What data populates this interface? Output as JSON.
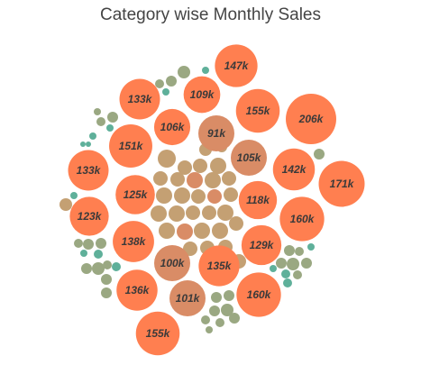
{
  "chart_data": {
    "type": "packed-bubble",
    "title": "Category wise Monthly Sales",
    "legend": "none",
    "grid": false,
    "colors": {
      "large": "#ff7f50",
      "medium": "#d98c66",
      "small": "#c4a073",
      "olive": "#9aa882",
      "teal": "#5fb09a"
    },
    "labeled_bubbles": [
      {
        "label": "147k",
        "value": 147,
        "tone": "large"
      },
      {
        "label": "109k",
        "value": 109,
        "tone": "large"
      },
      {
        "label": "133k",
        "value": 133,
        "tone": "large"
      },
      {
        "label": "155k",
        "value": 155,
        "tone": "large"
      },
      {
        "label": "206k",
        "value": 206,
        "tone": "large"
      },
      {
        "label": "106k",
        "value": 106,
        "tone": "large"
      },
      {
        "label": "91k",
        "value": 91,
        "tone": "medium"
      },
      {
        "label": "151k",
        "value": 151,
        "tone": "large"
      },
      {
        "label": "105k",
        "value": 105,
        "tone": "medium"
      },
      {
        "label": "142k",
        "value": 142,
        "tone": "large"
      },
      {
        "label": "133k",
        "value": 133,
        "tone": "large"
      },
      {
        "label": "171k",
        "value": 171,
        "tone": "large"
      },
      {
        "label": "125k",
        "value": 125,
        "tone": "large"
      },
      {
        "label": "118k",
        "value": 118,
        "tone": "large"
      },
      {
        "label": "123k",
        "value": 123,
        "tone": "large"
      },
      {
        "label": "160k",
        "value": 160,
        "tone": "large"
      },
      {
        "label": "138k",
        "value": 138,
        "tone": "large"
      },
      {
        "label": "129k",
        "value": 129,
        "tone": "large"
      },
      {
        "label": "100k",
        "value": 100,
        "tone": "medium"
      },
      {
        "label": "135k",
        "value": 135,
        "tone": "large"
      },
      {
        "label": "136k",
        "value": 136,
        "tone": "large"
      },
      {
        "label": "101k",
        "value": 101,
        "tone": "medium"
      },
      {
        "label": "160k",
        "value": 160,
        "tone": "large"
      },
      {
        "label": "155k",
        "value": 155,
        "tone": "large"
      }
    ]
  }
}
